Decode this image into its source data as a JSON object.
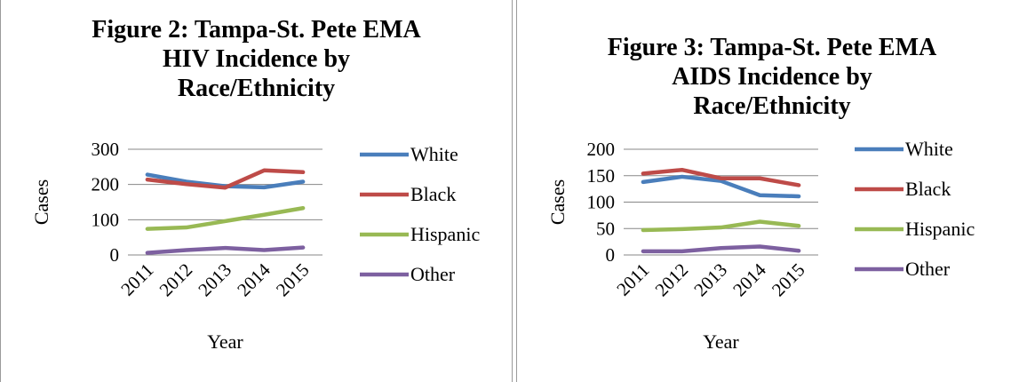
{
  "chart_data": [
    {
      "type": "line",
      "title_lines": [
        "Figure 2: Tampa-St. Pete EMA",
        "HIV Incidence by",
        "Race/Ethnicity"
      ],
      "xlabel": "Year",
      "ylabel": "Cases",
      "categories": [
        "2011",
        "2012",
        "2013",
        "2014",
        "2015"
      ],
      "ylim": [
        0,
        300
      ],
      "yticks": [
        "0",
        "100",
        "200",
        "300"
      ],
      "grid": true,
      "legend_position": "right",
      "series": [
        {
          "name": "White",
          "color": "#4a7ebb",
          "values": [
            228,
            208,
            195,
            192,
            208
          ]
        },
        {
          "name": "Black",
          "color": "#be4b48",
          "values": [
            214,
            201,
            191,
            240,
            235
          ]
        },
        {
          "name": "Hispanic",
          "color": "#98b954",
          "values": [
            74,
            78,
            96,
            114,
            133
          ]
        },
        {
          "name": "Other",
          "color": "#7d60a0",
          "values": [
            6,
            14,
            20,
            14,
            21
          ]
        }
      ]
    },
    {
      "type": "line",
      "title_lines": [
        "Figure 3: Tampa-St. Pete EMA",
        "AIDS Incidence by",
        "Race/Ethnicity"
      ],
      "xlabel": "Year",
      "ylabel": "Cases",
      "categories": [
        "2011",
        "2012",
        "2013",
        "2014",
        "2015"
      ],
      "ylim": [
        0,
        200
      ],
      "yticks": [
        "0",
        "50",
        "100",
        "150",
        "200"
      ],
      "grid": true,
      "legend_position": "right",
      "series": [
        {
          "name": "White",
          "color": "#4a7ebb",
          "values": [
            138,
            148,
            140,
            113,
            111
          ]
        },
        {
          "name": "Black",
          "color": "#be4b48",
          "values": [
            154,
            161,
            145,
            145,
            132
          ]
        },
        {
          "name": "Hispanic",
          "color": "#98b954",
          "values": [
            47,
            49,
            52,
            63,
            55
          ]
        },
        {
          "name": "Other",
          "color": "#7d60a0",
          "values": [
            7,
            7,
            13,
            16,
            8
          ]
        }
      ]
    }
  ]
}
